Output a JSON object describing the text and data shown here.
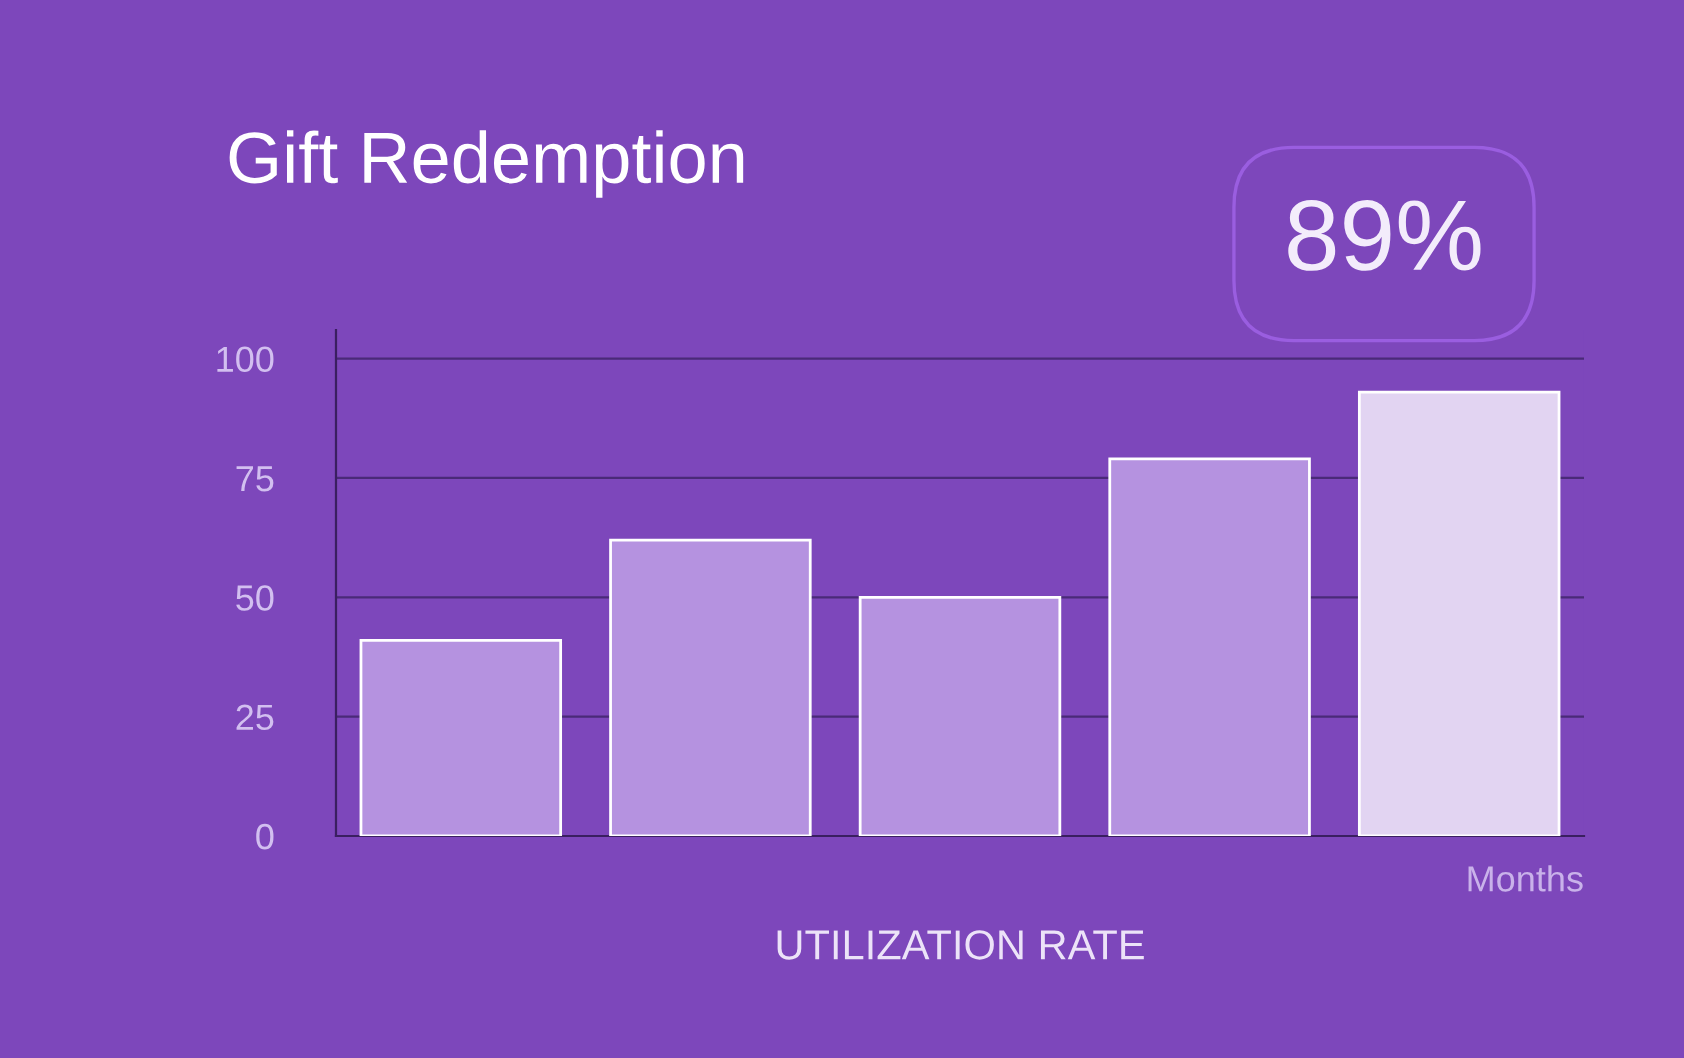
{
  "chart_data": {
    "type": "bar",
    "title": "Gift Redemption",
    "xlabel": "UTILIZATION RATE",
    "categories": [
      null,
      null,
      null,
      null,
      null
    ],
    "values": [
      41,
      62,
      50,
      79,
      93
    ],
    "colors": [
      "#b592e0",
      "#b592e0",
      "#b592e0",
      "#b592e0",
      "#e2d4f2"
    ],
    "ylim": [
      0,
      106
    ],
    "yticks": [
      0,
      25,
      50,
      75,
      100
    ],
    "grid": "y",
    "annotations": [
      "89%",
      "Months"
    ]
  }
}
